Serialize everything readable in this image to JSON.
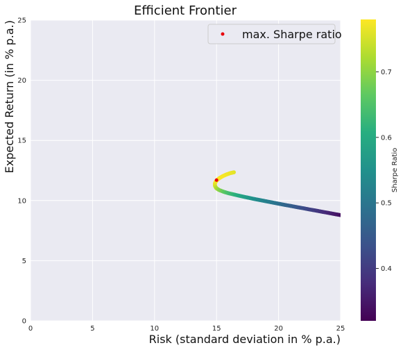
{
  "chart_data": {
    "type": "scatter",
    "title": "Efficient Frontier",
    "xlabel": "Risk (standard deviation in % p.a.)",
    "ylabel": "Expected Return (in % p.a.)",
    "xlim": [
      0,
      25
    ],
    "ylim": [
      0,
      25
    ],
    "x_ticks": [
      "0",
      "5",
      "10",
      "15",
      "20",
      "25"
    ],
    "y_ticks": [
      "0",
      "5",
      "10",
      "15",
      "20",
      "25"
    ],
    "grid": true,
    "legend": {
      "placement": "top-right",
      "entries": [
        "max. Sharpe ratio"
      ]
    },
    "colorbar": {
      "label": "Sharpe Ratio",
      "range": [
        0.32,
        0.78
      ],
      "ticks": [
        "0.4",
        "0.5",
        "0.6",
        "0.7"
      ],
      "colormap": "viridis"
    },
    "series": [
      {
        "kind": "frontier",
        "points": [
          {
            "risk": 16.4,
            "ret": 12.35,
            "sharpe": 0.76
          },
          {
            "risk": 16.1,
            "ret": 12.28,
            "sharpe": 0.765
          },
          {
            "risk": 15.8,
            "ret": 12.17,
            "sharpe": 0.77
          },
          {
            "risk": 15.5,
            "ret": 12.03,
            "sharpe": 0.775
          },
          {
            "risk": 15.25,
            "ret": 11.88,
            "sharpe": 0.777
          },
          {
            "risk": 15.05,
            "ret": 11.72,
            "sharpe": 0.778
          },
          {
            "risk": 14.92,
            "ret": 11.55,
            "sharpe": 0.775
          },
          {
            "risk": 14.86,
            "ret": 11.38,
            "sharpe": 0.77
          },
          {
            "risk": 14.88,
            "ret": 11.2,
            "sharpe": 0.755
          },
          {
            "risk": 14.98,
            "ret": 11.03,
            "sharpe": 0.73
          },
          {
            "risk": 15.2,
            "ret": 10.88,
            "sharpe": 0.7
          },
          {
            "risk": 15.6,
            "ret": 10.72,
            "sharpe": 0.665
          },
          {
            "risk": 16.0,
            "ret": 10.6,
            "sharpe": 0.64
          },
          {
            "risk": 16.5,
            "ret": 10.48,
            "sharpe": 0.615
          },
          {
            "risk": 17.0,
            "ret": 10.36,
            "sharpe": 0.59
          },
          {
            "risk": 17.5,
            "ret": 10.25,
            "sharpe": 0.57
          },
          {
            "risk": 18.0,
            "ret": 10.14,
            "sharpe": 0.55
          },
          {
            "risk": 18.5,
            "ret": 10.04,
            "sharpe": 0.535
          },
          {
            "risk": 19.0,
            "ret": 9.94,
            "sharpe": 0.52
          },
          {
            "risk": 19.5,
            "ret": 9.84,
            "sharpe": 0.505
          },
          {
            "risk": 20.0,
            "ret": 9.74,
            "sharpe": 0.49
          },
          {
            "risk": 20.5,
            "ret": 9.64,
            "sharpe": 0.475
          },
          {
            "risk": 21.0,
            "ret": 9.55,
            "sharpe": 0.46
          },
          {
            "risk": 21.5,
            "ret": 9.45,
            "sharpe": 0.445
          },
          {
            "risk": 22.0,
            "ret": 9.36,
            "sharpe": 0.43
          },
          {
            "risk": 22.5,
            "ret": 9.26,
            "sharpe": 0.415
          },
          {
            "risk": 23.0,
            "ret": 9.17,
            "sharpe": 0.4
          },
          {
            "risk": 23.5,
            "ret": 9.07,
            "sharpe": 0.385
          },
          {
            "risk": 24.0,
            "ret": 8.98,
            "sharpe": 0.37
          },
          {
            "risk": 24.5,
            "ret": 8.88,
            "sharpe": 0.355
          },
          {
            "risk": 25.0,
            "ret": 8.79,
            "sharpe": 0.34
          }
        ]
      },
      {
        "kind": "marker",
        "name": "max. Sharpe ratio",
        "color": "#e8000b",
        "points": [
          {
            "risk": 15.0,
            "ret": 11.7
          }
        ]
      }
    ]
  }
}
